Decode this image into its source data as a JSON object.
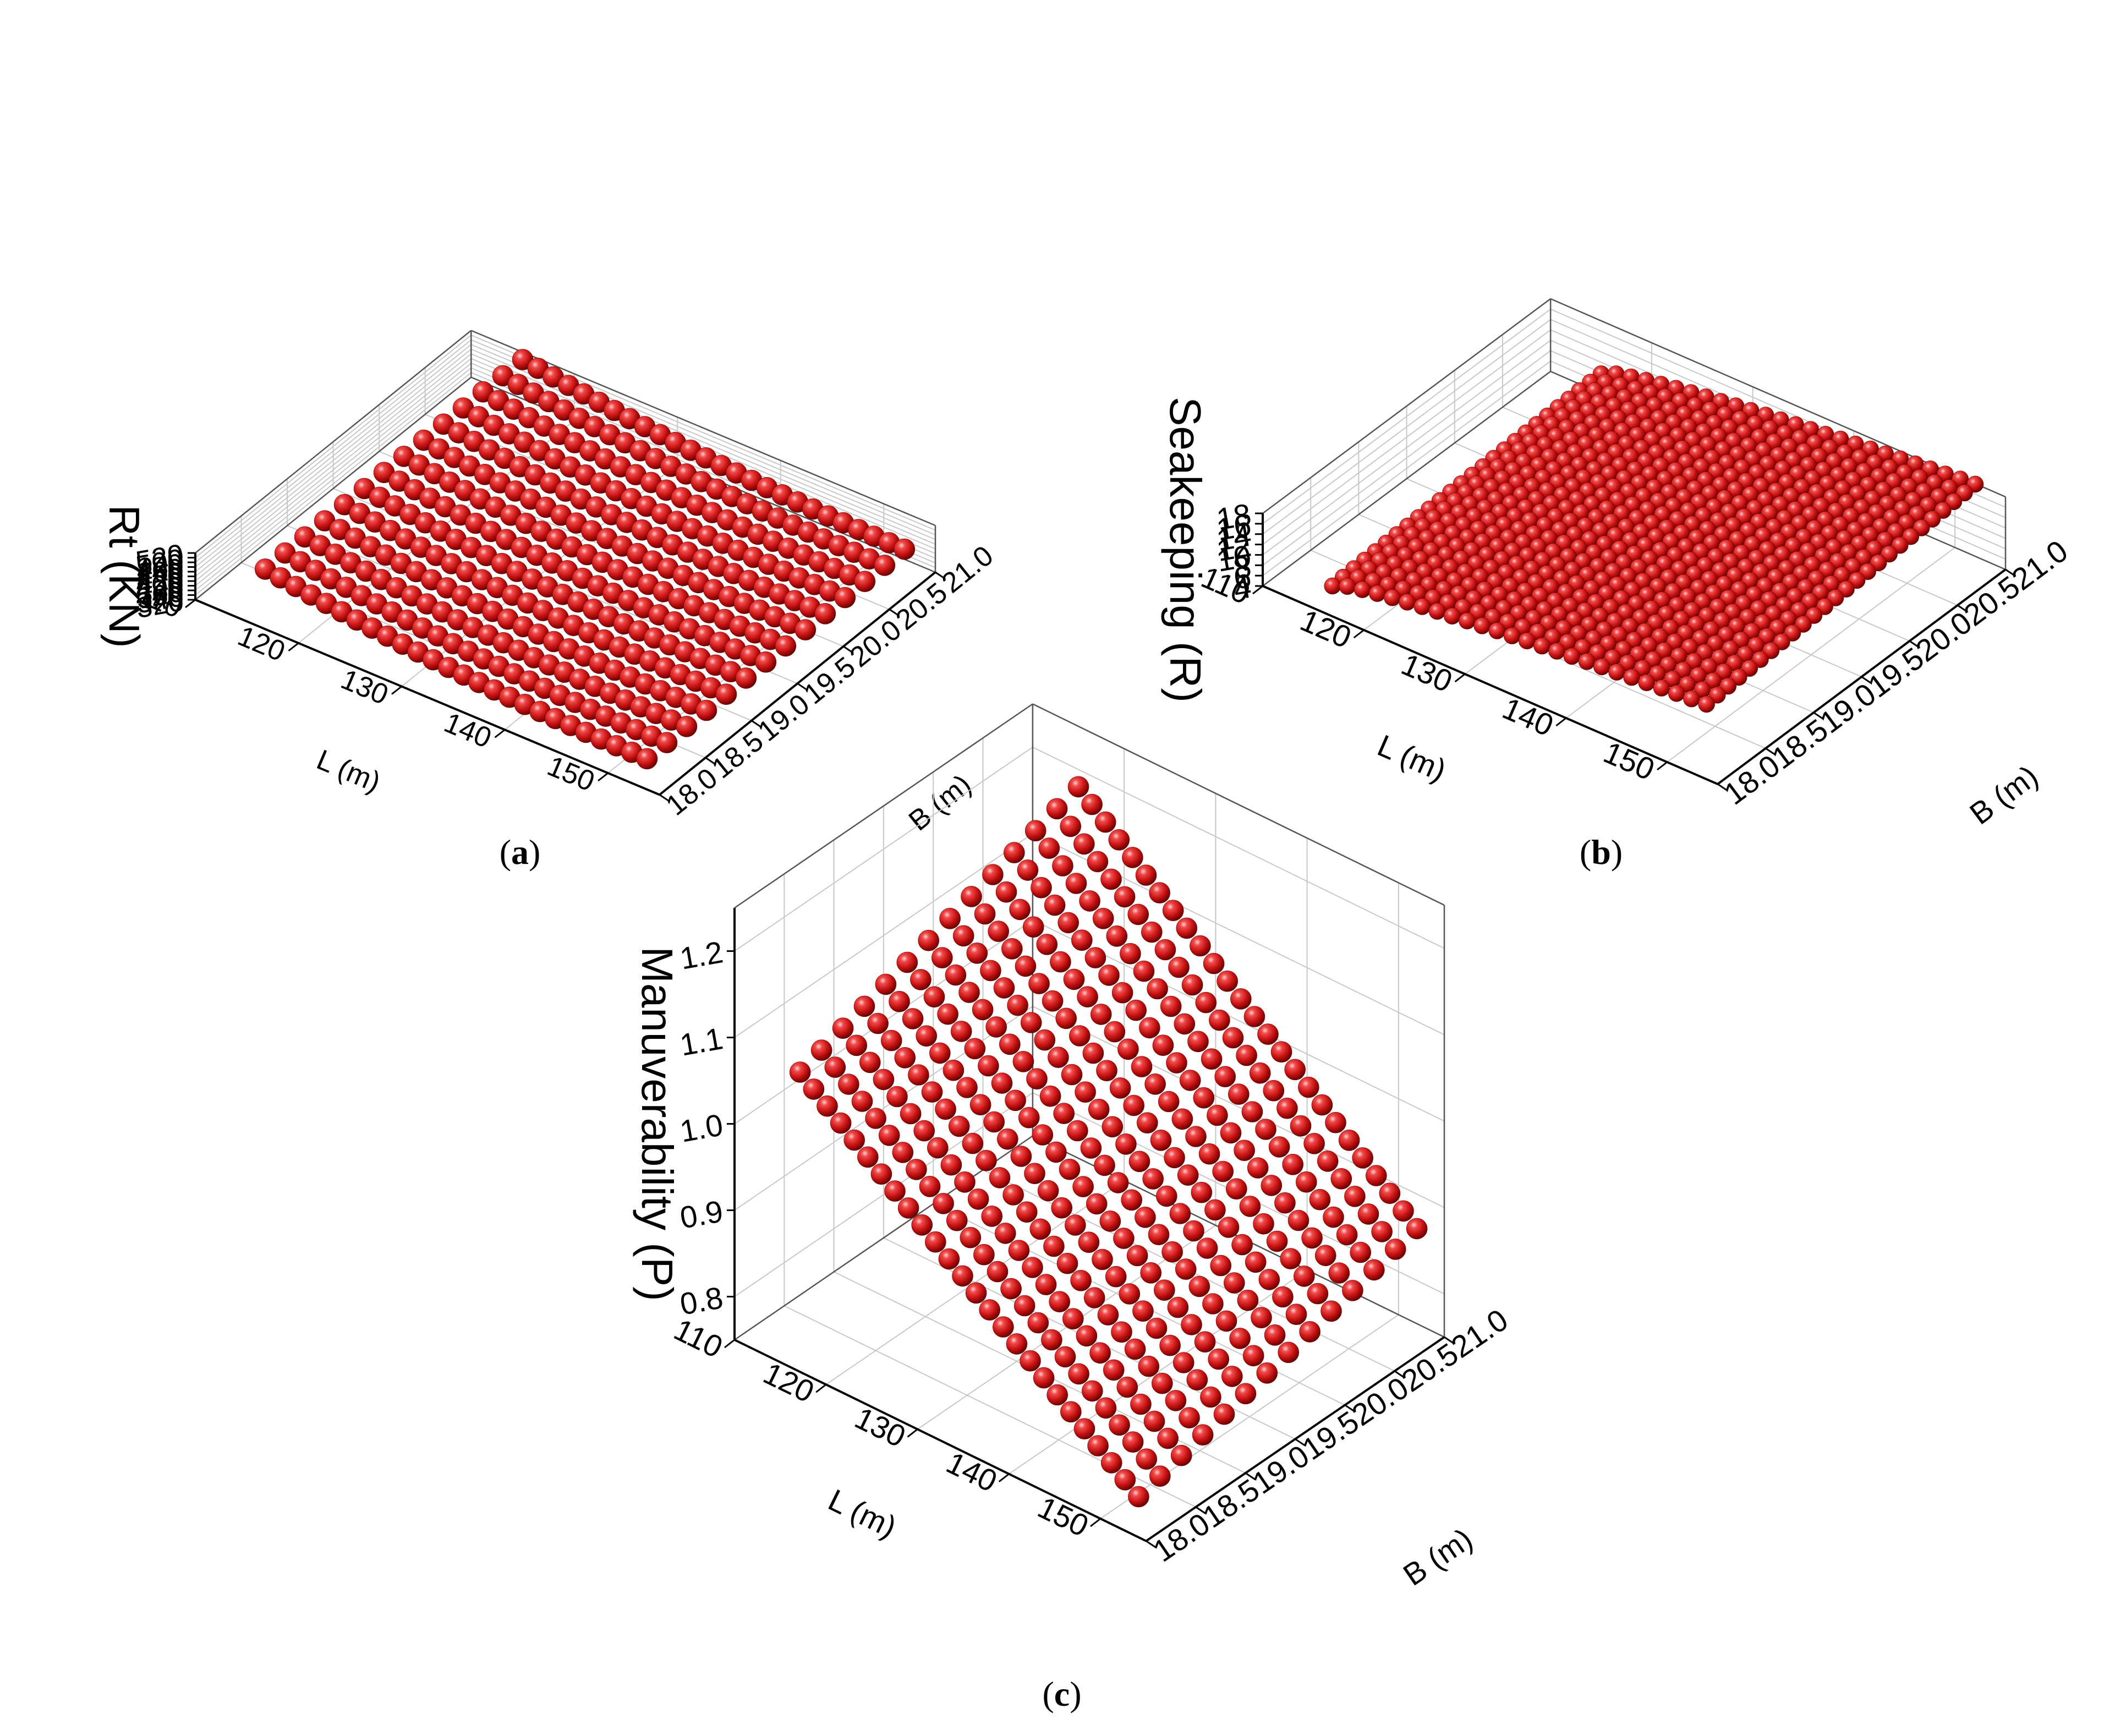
{
  "chart_data": [
    {
      "id": "a",
      "type": "scatter3d",
      "caption_letter": "a",
      "zlabel": "Rt (KN)",
      "xlabel": "L (m)",
      "ylabel": "B (m)",
      "xlim": [
        110,
        155
      ],
      "ylim": [
        18.0,
        21.0
      ],
      "zlim": [
        320,
        520
      ],
      "xticks": [
        110,
        120,
        130,
        140,
        150
      ],
      "xtick_labels": [
        "110",
        "120",
        "130",
        "140",
        "150"
      ],
      "yticks": [
        18.0,
        18.5,
        19.0,
        19.5,
        20.0,
        20.5,
        21.0
      ],
      "ytick_labels": [
        "18.0",
        "18.5",
        "19.0",
        "19.5",
        "20.0",
        "20.5",
        "21.0"
      ],
      "zticks": [
        320,
        340,
        360,
        380,
        400,
        420,
        440,
        460,
        480,
        500,
        520
      ],
      "ztick_labels": [
        "320",
        "340",
        "360",
        "380",
        "400",
        "420",
        "440",
        "460",
        "480",
        "500",
        "520"
      ],
      "grid": true,
      "marker": "sphere",
      "marker_color": "#d11a1a",
      "surface": {
        "L_start": 115,
        "L_end": 152,
        "L_count": 26,
        "B_start": 18.2,
        "B_end": 21.0,
        "B_count": 14,
        "model": "z = 355 + 125*((152 - L)/37)^2 + 8*((B - 18.2)/2.8)"
      }
    },
    {
      "id": "b",
      "type": "scatter3d",
      "caption_letter": "b",
      "zlabel": "Seakeeping (R)",
      "xlabel": "L (m)",
      "ylabel": "B (m)",
      "xlim": [
        110,
        155
      ],
      "ylim": [
        18.0,
        21.0
      ],
      "zlim": [
        4,
        18
      ],
      "xticks": [
        110,
        120,
        130,
        140,
        150
      ],
      "xtick_labels": [
        "110",
        "120",
        "130",
        "140",
        "150"
      ],
      "yticks": [
        18.0,
        18.5,
        19.0,
        19.5,
        20.0,
        20.5,
        21.0
      ],
      "ytick_labels": [
        "18.0",
        "18.5",
        "19.0",
        "19.5",
        "20.0",
        "20.5",
        "21.0"
      ],
      "zticks": [
        4,
        6,
        8,
        10,
        12,
        14,
        16,
        18
      ],
      "ztick_labels": [
        "4",
        "6",
        "8",
        "10",
        "12",
        "14",
        "16",
        "18"
      ],
      "grid": true,
      "marker": "sphere",
      "marker_color": "#d11a1a",
      "surface": {
        "L_start": 115,
        "L_end": 152,
        "L_count": 26,
        "B_start": 18.2,
        "B_end": 21.0,
        "B_count": 26,
        "model": "z increases from about 5.5 to about 17.9 with both L and B"
      }
    },
    {
      "id": "c",
      "type": "scatter3d",
      "caption_letter": "c",
      "zlabel": "Manuverability (P)",
      "xlabel": "L (m)",
      "ylabel": "B (m)",
      "xlim": [
        110,
        155
      ],
      "ylim": [
        18.0,
        21.0
      ],
      "zlim": [
        0.75,
        1.25
      ],
      "xticks": [
        110,
        120,
        130,
        140,
        150
      ],
      "xtick_labels": [
        "110",
        "120",
        "130",
        "140",
        "150"
      ],
      "yticks": [
        18.0,
        18.5,
        19.0,
        19.5,
        20.0,
        20.5,
        21.0
      ],
      "ytick_labels": [
        "18.0",
        "18.5",
        "19.0",
        "19.5",
        "20.0",
        "20.5",
        "21.0"
      ],
      "zticks": [
        0.8,
        0.9,
        1.0,
        1.1,
        1.2
      ],
      "ztick_labels": [
        "0.8",
        "0.9",
        "1.0",
        "1.1",
        "1.2"
      ],
      "grid": true,
      "marker": "sphere",
      "marker_color": "#d11a1a",
      "surface": {
        "L_start": 115,
        "L_end": 152,
        "L_count": 26,
        "B_start": 18.2,
        "B_end": 21.0,
        "B_count": 14,
        "model": "z decreases from about 1.09-1.23 at short L to about 0.77-0.86 at long L, rising with B"
      }
    }
  ]
}
